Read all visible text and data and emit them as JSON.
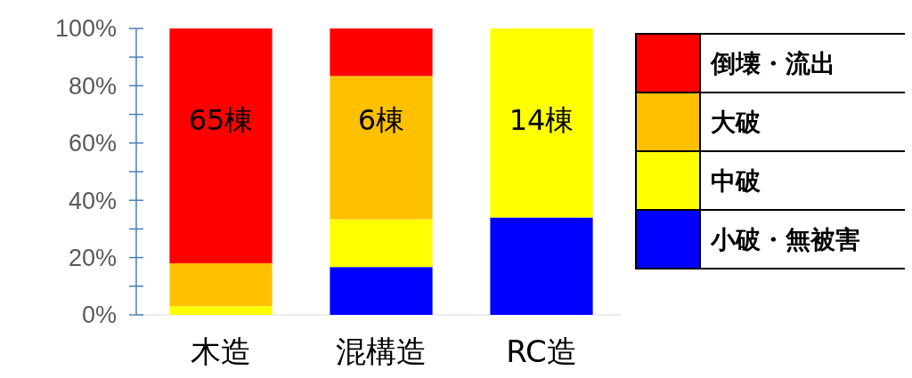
{
  "chart_data": {
    "type": "bar",
    "stacked": true,
    "categories": [
      "木造",
      "混構造",
      "RC造"
    ],
    "series": [
      {
        "name": "小破・無被害",
        "color": "#0000ff",
        "values": [
          0,
          16.7,
          34
        ]
      },
      {
        "name": "中破",
        "color": "#ffff00",
        "values": [
          3,
          16.7,
          66
        ]
      },
      {
        "name": "大破",
        "color": "#ffc000",
        "values": [
          15,
          50,
          0
        ]
      },
      {
        "name": "倒壊・流出",
        "color": "#ff0000",
        "values": [
          82,
          16.6,
          0
        ]
      }
    ],
    "ylim": [
      0,
      100
    ],
    "yticks": [
      {
        "value": 0,
        "label": "0%"
      },
      {
        "value": 10,
        "label": null
      },
      {
        "value": 20,
        "label": "20%"
      },
      {
        "value": 30,
        "label": null
      },
      {
        "value": 40,
        "label": "40%"
      },
      {
        "value": 50,
        "label": null
      },
      {
        "value": 60,
        "label": "60%"
      },
      {
        "value": 70,
        "label": null
      },
      {
        "value": 80,
        "label": "80%"
      },
      {
        "value": 90,
        "label": null
      },
      {
        "value": 100,
        "label": "100%"
      }
    ],
    "annotations": [
      "65棟",
      "6棟",
      "14棟"
    ],
    "legend": "right",
    "grid": false
  }
}
